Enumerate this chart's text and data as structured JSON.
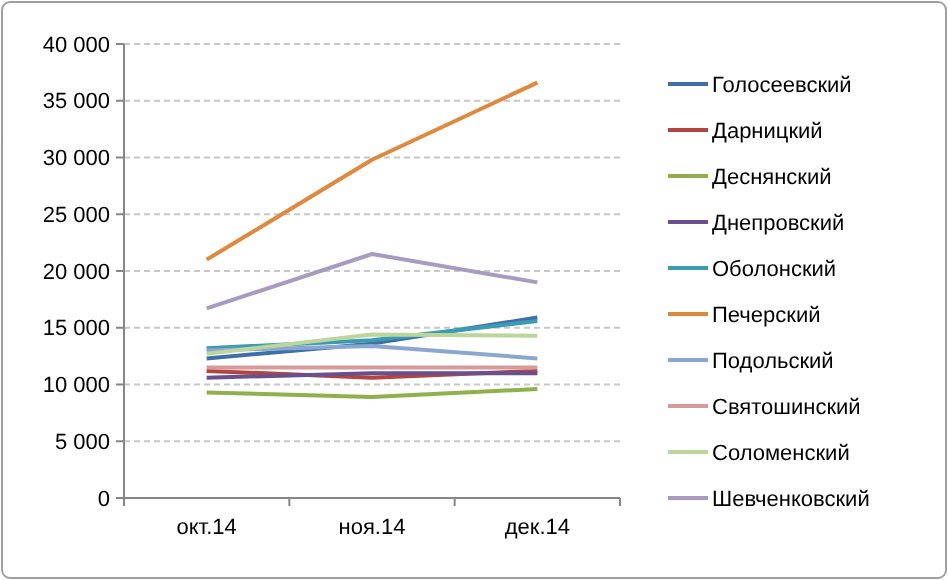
{
  "chart_data": {
    "type": "line",
    "categories": [
      "окт.14",
      "ноя.14",
      "дек.14"
    ],
    "series": [
      {
        "name": "Голосеевский",
        "color": "#3f6faa",
        "values": [
          12300,
          13600,
          15900
        ]
      },
      {
        "name": "Дарницкий",
        "color": "#b3443f",
        "values": [
          11200,
          10600,
          11200
        ]
      },
      {
        "name": "Деснянский",
        "color": "#8fb04c",
        "values": [
          9300,
          8900,
          9600
        ]
      },
      {
        "name": "Днепровский",
        "color": "#6a4f8e",
        "values": [
          10600,
          11000,
          11000
        ]
      },
      {
        "name": "Оболонский",
        "color": "#3b9bb3",
        "values": [
          13200,
          13900,
          15600
        ]
      },
      {
        "name": "Печерский",
        "color": "#e0893e",
        "values": [
          21000,
          29800,
          36600
        ]
      },
      {
        "name": "Подольский",
        "color": "#8aa8cf",
        "values": [
          13000,
          13400,
          12300
        ]
      },
      {
        "name": "Святошинский",
        "color": "#d69a9a",
        "values": [
          11500,
          11500,
          11500
        ]
      },
      {
        "name": "Соломенский",
        "color": "#bcd59a",
        "values": [
          12700,
          14400,
          14300
        ]
      },
      {
        "name": "Шевченковский",
        "color": "#a99bbf",
        "values": [
          16700,
          21500,
          19000
        ]
      }
    ],
    "ylim": [
      0,
      40000
    ],
    "yticks": [
      0,
      {
        "value": 5000,
        "label": "5 000"
      },
      {
        "value": 10000,
        "label": "10 000"
      },
      {
        "value": 15000,
        "label": "15 000"
      },
      {
        "value": 20000,
        "label": "20 000"
      },
      {
        "value": 25000,
        "label": "25 000"
      },
      {
        "value": 30000,
        "label": "30 000"
      },
      {
        "value": 35000,
        "label": "35 000"
      },
      {
        "value": 40000,
        "label": "40 000"
      }
    ],
    "grid": "y",
    "legend": "right",
    "line_style": "solid",
    "marker": "none"
  }
}
